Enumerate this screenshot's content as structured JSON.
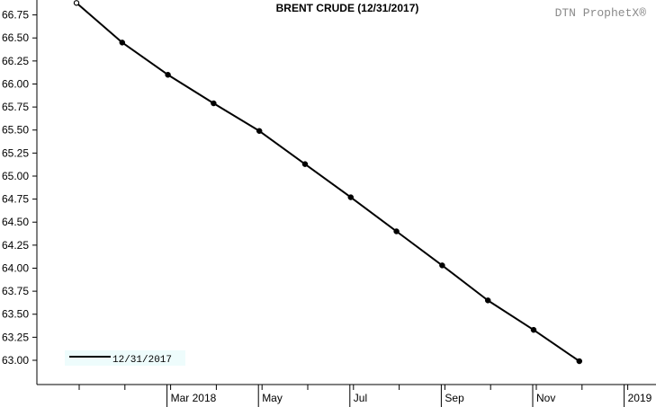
{
  "chart_data": {
    "type": "line",
    "title": "BRENT CRUDE (12/31/2017)",
    "watermark": "DTN ProphetX®",
    "xlabel": "",
    "ylabel": "",
    "x": [
      "2018-01",
      "2018-02",
      "2018-03",
      "2018-04",
      "2018-05",
      "2018-06",
      "2018-07",
      "2018-08",
      "2018-09",
      "2018-10",
      "2018-11",
      "2018-12",
      "2019-01"
    ],
    "x_tick_labels": [
      {
        "x": "2018-03",
        "label": "Mar 2018"
      },
      {
        "x": "2018-05",
        "label": "May"
      },
      {
        "x": "2018-07",
        "label": "Jul"
      },
      {
        "x": "2018-09",
        "label": "Sep"
      },
      {
        "x": "2018-11",
        "label": "Nov"
      },
      {
        "x": "2019-01",
        "label": "2019"
      }
    ],
    "y_ticks": [
      "63.00",
      "63.25",
      "63.50",
      "63.75",
      "64.00",
      "64.25",
      "64.50",
      "64.75",
      "65.00",
      "65.25",
      "65.50",
      "65.75",
      "66.00",
      "66.25",
      "66.50",
      "66.75"
    ],
    "ylim": [
      62.875,
      66.875
    ],
    "grid": false,
    "legend_position": "bottom-left",
    "series": [
      {
        "name": "12/31/2017",
        "color": "#000000",
        "values": [
          66.88,
          66.45,
          66.1,
          65.79,
          65.49,
          65.13,
          64.77,
          64.4,
          64.03,
          63.65,
          63.33,
          62.99,
          null
        ]
      }
    ]
  }
}
